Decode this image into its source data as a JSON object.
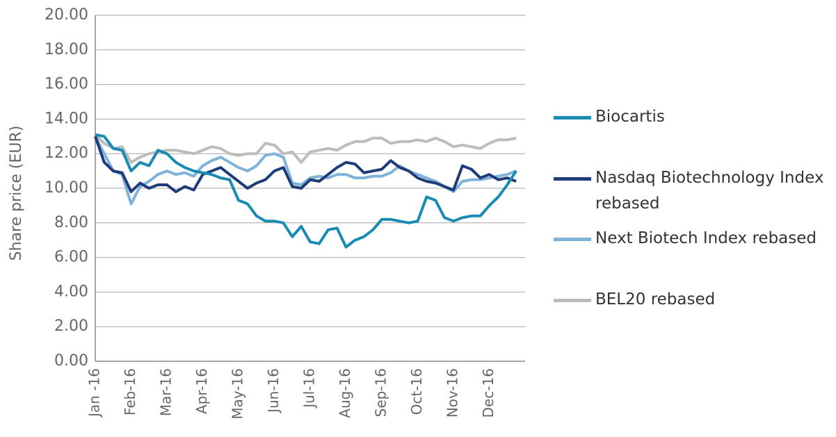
{
  "chart_data": {
    "type": "line",
    "y_label": "Share price (EUR)",
    "categories": [
      "Jan -16",
      null,
      null,
      null,
      "Feb-16",
      null,
      null,
      null,
      "Mar-16",
      null,
      null,
      null,
      "Apr-16",
      null,
      null,
      null,
      "May-16",
      null,
      null,
      null,
      "Jun-16",
      null,
      null,
      null,
      "Jul-16",
      null,
      null,
      null,
      "Aug-16",
      null,
      null,
      null,
      "Sep-16",
      null,
      null,
      null,
      "Oct-16",
      null,
      null,
      null,
      "Nov-16",
      null,
      null,
      null,
      "Dec-16",
      null,
      null,
      null
    ],
    "series": [
      {
        "name": "Biocartis",
        "color": "#1a8bb4",
        "values": [
          13.1,
          13.0,
          12.3,
          12.2,
          11.0,
          11.5,
          11.3,
          12.2,
          12.0,
          11.5,
          11.2,
          11.0,
          10.9,
          10.8,
          10.6,
          10.5,
          9.3,
          9.1,
          8.4,
          8.1,
          8.1,
          8.0,
          7.2,
          7.8,
          6.9,
          6.8,
          7.6,
          7.7,
          6.6,
          7.0,
          7.2,
          7.6,
          8.2,
          8.2,
          8.1,
          8.0,
          8.1,
          9.5,
          9.3,
          8.3,
          8.1,
          8.3,
          8.4,
          8.4,
          9.0,
          9.5,
          10.2,
          11.0
        ]
      },
      {
        "name": "Nasdaq Biotechnology  Index rebased",
        "color": "#1f3c7a",
        "values": [
          13.0,
          11.5,
          11.0,
          10.9,
          9.8,
          10.3,
          10.0,
          10.2,
          10.2,
          9.8,
          10.1,
          9.9,
          10.8,
          11.0,
          11.2,
          10.8,
          10.4,
          10.0,
          10.3,
          10.5,
          11.0,
          11.2,
          10.1,
          10.0,
          10.5,
          10.4,
          10.8,
          11.2,
          11.5,
          11.4,
          10.9,
          11.0,
          11.1,
          11.6,
          11.2,
          11.0,
          10.6,
          10.4,
          10.3,
          10.1,
          9.9,
          11.3,
          11.1,
          10.6,
          10.8,
          10.5,
          10.6,
          10.4
        ]
      },
      {
        "name": "Next Biotech  Index rebased",
        "color": "#7fb2d9",
        "values": [
          13.0,
          12.0,
          11.0,
          10.8,
          9.1,
          10.1,
          10.4,
          10.8,
          11.0,
          10.8,
          10.9,
          10.7,
          11.3,
          11.6,
          11.8,
          11.5,
          11.2,
          11.0,
          11.3,
          11.9,
          12.0,
          11.8,
          10.3,
          10.2,
          10.6,
          10.7,
          10.6,
          10.8,
          10.8,
          10.6,
          10.6,
          10.7,
          10.7,
          10.9,
          11.3,
          11.0,
          10.8,
          10.6,
          10.4,
          10.1,
          9.8,
          10.4,
          10.5,
          10.5,
          10.6,
          10.7,
          10.8,
          11.0
        ]
      },
      {
        "name": "BEL20 rebased",
        "color": "#bcbcbd",
        "values": [
          13.1,
          12.6,
          12.3,
          12.4,
          11.5,
          11.8,
          12.0,
          12.1,
          12.2,
          12.2,
          12.1,
          12.0,
          12.2,
          12.4,
          12.3,
          12.0,
          11.9,
          12.0,
          12.0,
          12.6,
          12.5,
          12.0,
          12.1,
          11.5,
          12.1,
          12.2,
          12.3,
          12.2,
          12.5,
          12.7,
          12.7,
          12.9,
          12.9,
          12.6,
          12.7,
          12.7,
          12.8,
          12.7,
          12.9,
          12.7,
          12.4,
          12.5,
          12.4,
          12.3,
          12.6,
          12.8,
          12.8,
          12.9
        ]
      }
    ],
    "ylim": [
      0,
      20
    ],
    "yticks": [
      {
        "value": 0,
        "label": "0.00"
      },
      {
        "value": 2,
        "label": "2.00"
      },
      {
        "value": 4,
        "label": "4.00"
      },
      {
        "value": 6,
        "label": "6.00"
      },
      {
        "value": 8,
        "label": "8.00"
      },
      {
        "value": 10,
        "label": "10.00"
      },
      {
        "value": 12,
        "label": "12.00"
      },
      {
        "value": 14,
        "label": "14.00"
      },
      {
        "value": 16,
        "label": "16.00"
      },
      {
        "value": 18,
        "label": "18.00"
      },
      {
        "value": 20,
        "label": "20.00"
      }
    ],
    "grid": true,
    "legend": "right"
  }
}
